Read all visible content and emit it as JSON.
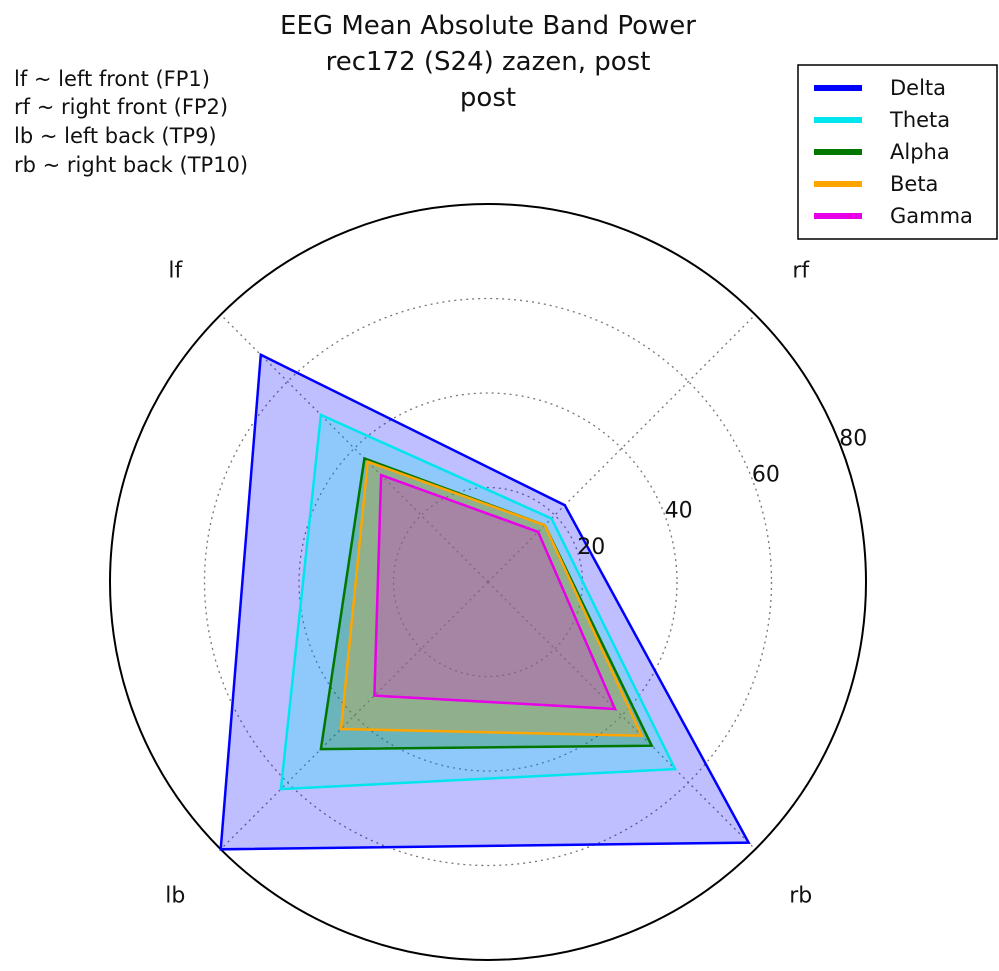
{
  "chart_data": {
    "type": "radar",
    "title": [
      "EEG Mean Absolute Band Power",
      "rec172 (S24) zazen, post",
      "post"
    ],
    "notes": [
      "lf ~ left front (FP1)",
      "rf ~ right front (FP2)",
      "lb ~ left back (TP9)",
      "rb ~ right back (TP10)"
    ],
    "axes": [
      "lf",
      "rf",
      "rb",
      "lb"
    ],
    "rlim": [
      0,
      80
    ],
    "rticks": [
      "20",
      "40",
      "60",
      "80"
    ],
    "grid": true,
    "legend_position": "top-right",
    "series": [
      {
        "name": "Delta",
        "color": "#0000ff",
        "values": [
          68,
          23,
          78,
          80
        ]
      },
      {
        "name": "Theta",
        "color": "#00e5ee",
        "values": [
          50,
          19,
          56,
          62
        ]
      },
      {
        "name": "Alpha",
        "color": "#007800",
        "values": [
          37,
          17,
          49,
          50
        ]
      },
      {
        "name": "Beta",
        "color": "#ffa500",
        "values": [
          36,
          17,
          46,
          44
        ]
      },
      {
        "name": "Gamma",
        "color": "#e800e8",
        "values": [
          32,
          15,
          38,
          34
        ]
      }
    ]
  }
}
